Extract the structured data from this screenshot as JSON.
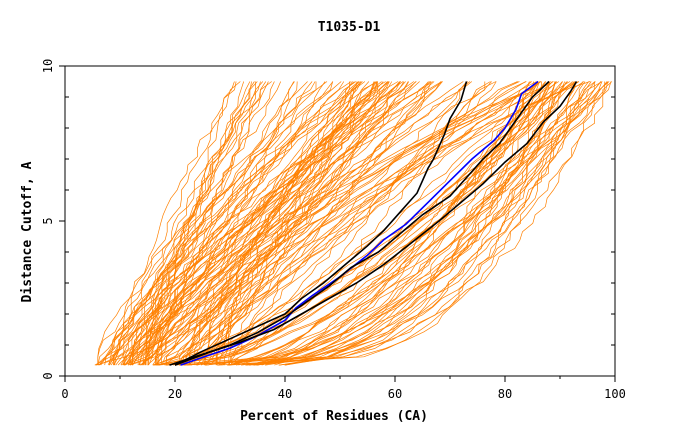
{
  "chart_data": {
    "type": "line",
    "title": "T1035-D1",
    "xlabel": "Percent of Residues (CA)",
    "ylabel": "Distance Cutoff, A",
    "xlim": [
      0,
      100
    ],
    "ylim": [
      0,
      10
    ],
    "x_ticks": [
      0,
      20,
      40,
      60,
      80,
      100
    ],
    "y_ticks": [
      0,
      5,
      10
    ],
    "x_tick_labels": [
      "0",
      "20",
      "40",
      "60",
      "80",
      "100"
    ],
    "y_tick_labels": [
      "0",
      "5",
      "10"
    ],
    "grid": false,
    "legend": "none",
    "background_series_color": "#ff8000",
    "background_series_count": 160,
    "background_series_note": "orange GDT curves for many models; values approximate",
    "highlight_series": [
      {
        "color": "#0000ff",
        "x": [
          21,
          25,
          30,
          35,
          40,
          42,
          45,
          50,
          55,
          58,
          62,
          66,
          70,
          74,
          78,
          80,
          82,
          83,
          86
        ],
        "y": [
          0.35,
          0.6,
          0.9,
          1.3,
          1.8,
          2.2,
          2.6,
          3.2,
          3.9,
          4.4,
          4.9,
          5.6,
          6.3,
          7.0,
          7.6,
          8.0,
          8.6,
          9.1,
          9.5
        ]
      },
      {
        "color": "#000000",
        "x": [
          20,
          25,
          30,
          35,
          40,
          43,
          47,
          51,
          55,
          58,
          61,
          64,
          65,
          66,
          67,
          68,
          69,
          70,
          72,
          73
        ],
        "y": [
          0.35,
          0.8,
          1.2,
          1.6,
          2.0,
          2.5,
          3.0,
          3.6,
          4.2,
          4.7,
          5.3,
          5.9,
          6.3,
          6.7,
          7.0,
          7.4,
          7.8,
          8.3,
          8.9,
          9.5
        ]
      },
      {
        "color": "#000000",
        "x": [
          19,
          25,
          30,
          35,
          40,
          44,
          48,
          52,
          57,
          61,
          65,
          70,
          73,
          76,
          79,
          81,
          83,
          85,
          88
        ],
        "y": [
          0.35,
          0.7,
          1.0,
          1.4,
          1.9,
          2.4,
          2.9,
          3.5,
          4.0,
          4.6,
          5.2,
          5.8,
          6.4,
          7.0,
          7.5,
          8.0,
          8.5,
          9.0,
          9.5
        ]
      },
      {
        "color": "#000000",
        "x": [
          20,
          26,
          32,
          38,
          43,
          48,
          53,
          58,
          63,
          68,
          72,
          76,
          80,
          84,
          87,
          90,
          92,
          93
        ],
        "y": [
          0.35,
          0.75,
          1.1,
          1.5,
          2.0,
          2.5,
          3.0,
          3.6,
          4.3,
          5.0,
          5.6,
          6.2,
          6.9,
          7.5,
          8.2,
          8.7,
          9.2,
          9.5
        ]
      }
    ]
  }
}
